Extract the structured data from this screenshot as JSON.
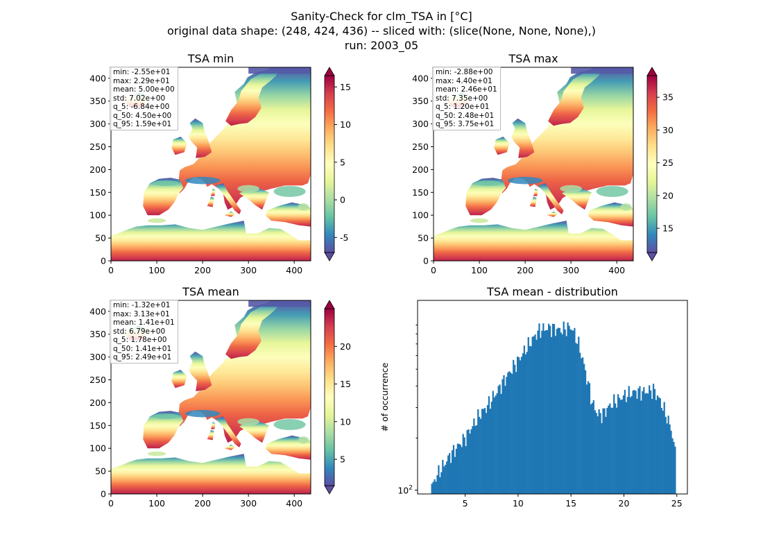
{
  "figure": {
    "title_line1": "Sanity-Check for clm_TSA in [°C]",
    "title_line2": "original data shape: (248, 424, 436) -- sliced with: (slice(None, None, None),)",
    "title_line3": "run: 2003_05"
  },
  "colormap": "Spectral_r",
  "chart_data": [
    {
      "type": "heatmap",
      "title": "TSA min",
      "xlim": [
        0,
        436
      ],
      "ylim": [
        0,
        424
      ],
      "xticks": [
        0,
        100,
        200,
        300,
        400
      ],
      "yticks": [
        0,
        50,
        100,
        150,
        200,
        250,
        300,
        350,
        400
      ],
      "colorbar": {
        "range": [
          -7,
          16.5
        ],
        "ticks": [
          -5,
          0,
          5,
          10,
          15
        ],
        "extend": "both"
      },
      "stats": [
        "min: -2.55e+01",
        "max: 2.29e+01",
        "mean: 5.00e+00",
        "std: 7.02e+00",
        "q_5: -6.84e+00",
        "q_50: 4.50e+00",
        "q_95: 1.59e+01"
      ]
    },
    {
      "type": "heatmap",
      "title": "TSA max",
      "xlim": [
        0,
        436
      ],
      "ylim": [
        0,
        424
      ],
      "xticks": [
        0,
        100,
        200,
        300,
        400
      ],
      "yticks": [
        0,
        50,
        100,
        150,
        200,
        250,
        300,
        350,
        400
      ],
      "colorbar": {
        "range": [
          11.3,
          38.3
        ],
        "ticks": [
          15,
          20,
          25,
          30,
          35
        ],
        "extend": "both"
      },
      "stats": [
        "min: -2.88e+00",
        "max: 4.40e+01",
        "mean: 2.46e+01",
        "std: 7.35e+00",
        "q_5: 1.20e+01",
        "q_50: 2.48e+01",
        "q_95: 3.75e+01"
      ]
    },
    {
      "type": "heatmap",
      "title": "TSA mean",
      "xlim": [
        0,
        436
      ],
      "ylim": [
        0,
        424
      ],
      "xticks": [
        0,
        100,
        200,
        300,
        400
      ],
      "yticks": [
        0,
        50,
        100,
        150,
        200,
        250,
        300,
        350,
        400
      ],
      "colorbar": {
        "range": [
          1.5,
          25
        ],
        "ticks": [
          5,
          10,
          15,
          20
        ],
        "extend": "both"
      },
      "stats": [
        "min: -1.32e+01",
        "max: 3.13e+01",
        "mean: 1.41e+01",
        "std: 6.79e+00",
        "q_5: 1.78e+00",
        "q_50: 1.41e+01",
        "q_95: 2.49e+01"
      ]
    },
    {
      "type": "bar",
      "title": "TSA mean - distribution",
      "ylabel": "# of occurrence",
      "yscale": "log",
      "xlim": [
        0.5,
        26
      ],
      "ylim": [
        95,
        1250
      ],
      "xticks": [
        5,
        10,
        15,
        20,
        25
      ],
      "ytick_label": {
        "base": "10",
        "exp": "2",
        "value": 100
      },
      "color": "#1f77b4",
      "bin_range": [
        1.78,
        24.9
      ],
      "nbins": 180,
      "envelope": {
        "x": [
          1.78,
          2.2,
          3,
          3.6,
          4.0,
          5,
          6,
          6.5,
          7,
          8,
          9,
          10,
          11,
          12,
          13,
          14,
          15,
          15.5,
          16,
          16.5,
          17,
          17.5,
          18,
          18.5,
          19,
          20,
          21,
          22,
          22.8,
          23.5,
          24,
          24.5,
          24.9
        ],
        "y": [
          102,
          118,
          140,
          160,
          170,
          200,
          250,
          280,
          300,
          370,
          460,
          560,
          690,
          840,
          870,
          840,
          880,
          760,
          600,
          440,
          320,
          275,
          275,
          300,
          320,
          350,
          370,
          370,
          380,
          320,
          270,
          220,
          155
        ]
      }
    }
  ]
}
